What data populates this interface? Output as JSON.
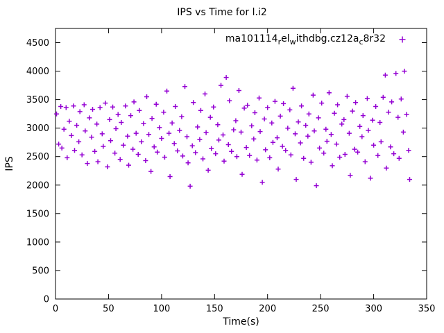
{
  "title": "IPS vs Time for l.i2",
  "xlabel": "Time(s)",
  "ylabel": "IPS",
  "legend": {
    "seg0": "ma101114",
    "seg1": "r",
    "seg2": "el",
    "seg3": "w",
    "seg4": "ithdbg.cz12a",
    "seg5": "c",
    "seg6": "8r32"
  },
  "colors": {
    "series": "#9400D3",
    "axis": "#000000",
    "background": "#ffffff"
  },
  "chart_data": {
    "type": "scatter",
    "title": "IPS vs Time for l.i2",
    "xlabel": "Time(s)",
    "ylabel": "IPS",
    "xlim": [
      0,
      350
    ],
    "ylim": [
      0,
      4750
    ],
    "xticks": [
      0,
      50,
      100,
      150,
      200,
      250,
      300,
      350
    ],
    "yticks": [
      0,
      500,
      1000,
      1500,
      2000,
      2500,
      3000,
      3500,
      4000,
      4500
    ],
    "grid": false,
    "legend_position": "top-right-inside",
    "series": [
      {
        "name": "ma101114_rel_withdbg.cz12a_c8r32",
        "marker": "plus",
        "color": "#9400D3",
        "points": [
          [
            1,
            3250
          ],
          [
            3,
            2720
          ],
          [
            5,
            3380
          ],
          [
            6,
            2650
          ],
          [
            8,
            2980
          ],
          [
            10,
            3360
          ],
          [
            11,
            2480
          ],
          [
            13,
            3120
          ],
          [
            15,
            2870
          ],
          [
            17,
            3390
          ],
          [
            18,
            2610
          ],
          [
            20,
            3050
          ],
          [
            22,
            2760
          ],
          [
            23,
            3290
          ],
          [
            25,
            2530
          ],
          [
            27,
            3410
          ],
          [
            28,
            2950
          ],
          [
            30,
            2380
          ],
          [
            32,
            3180
          ],
          [
            34,
            2840
          ],
          [
            35,
            3330
          ],
          [
            37,
            2590
          ],
          [
            39,
            3070
          ],
          [
            40,
            2410
          ],
          [
            42,
            3360
          ],
          [
            44,
            2900
          ],
          [
            45,
            2680
          ],
          [
            47,
            3440
          ],
          [
            49,
            2320
          ],
          [
            51,
            3150
          ],
          [
            52,
            2780
          ],
          [
            54,
            3370
          ],
          [
            56,
            2560
          ],
          [
            57,
            2990
          ],
          [
            59,
            3240
          ],
          [
            61,
            2450
          ],
          [
            62,
            3100
          ],
          [
            64,
            2700
          ],
          [
            66,
            3390
          ],
          [
            68,
            2860
          ],
          [
            69,
            2350
          ],
          [
            71,
            3220
          ],
          [
            73,
            2630
          ],
          [
            74,
            3460
          ],
          [
            76,
            2910
          ],
          [
            78,
            2540
          ],
          [
            79,
            3310
          ],
          [
            81,
            2760
          ],
          [
            83,
            3080
          ],
          [
            85,
            2430
          ],
          [
            86,
            3550
          ],
          [
            88,
            2890
          ],
          [
            90,
            2240
          ],
          [
            91,
            3170
          ],
          [
            93,
            2670
          ],
          [
            95,
            3420
          ],
          [
            96,
            2580
          ],
          [
            98,
            3010
          ],
          [
            100,
            2820
          ],
          [
            102,
            3280
          ],
          [
            103,
            2490
          ],
          [
            105,
            3650
          ],
          [
            107,
            2910
          ],
          [
            108,
            2150
          ],
          [
            110,
            3090
          ],
          [
            112,
            2730
          ],
          [
            113,
            3380
          ],
          [
            115,
            2600
          ],
          [
            117,
            2960
          ],
          [
            119,
            3200
          ],
          [
            120,
            2510
          ],
          [
            122,
            3730
          ],
          [
            124,
            2850
          ],
          [
            125,
            2390
          ],
          [
            127,
            1980
          ],
          [
            129,
            2690
          ],
          [
            130,
            3450
          ],
          [
            132,
            2570
          ],
          [
            134,
            3020
          ],
          [
            136,
            2800
          ],
          [
            137,
            3310
          ],
          [
            139,
            2460
          ],
          [
            141,
            3600
          ],
          [
            142,
            2920
          ],
          [
            144,
            2260
          ],
          [
            146,
            3190
          ],
          [
            147,
            2640
          ],
          [
            149,
            3370
          ],
          [
            151,
            2550
          ],
          [
            153,
            3060
          ],
          [
            154,
            2790
          ],
          [
            156,
            3750
          ],
          [
            158,
            2880
          ],
          [
            159,
            2420
          ],
          [
            161,
            3890
          ],
          [
            163,
            2710
          ],
          [
            164,
            3480
          ],
          [
            166,
            2590
          ],
          [
            168,
            2970
          ],
          [
            170,
            3130
          ],
          [
            171,
            2500
          ],
          [
            173,
            3660
          ],
          [
            175,
            2930
          ],
          [
            176,
            2190
          ],
          [
            178,
            3350
          ],
          [
            180,
            2660
          ],
          [
            181,
            3400
          ],
          [
            183,
            2520
          ],
          [
            185,
            3040
          ],
          [
            187,
            2810
          ],
          [
            188,
            3270
          ],
          [
            190,
            2440
          ],
          [
            192,
            3530
          ],
          [
            193,
            2940
          ],
          [
            195,
            2050
          ],
          [
            197,
            3160
          ],
          [
            198,
            2620
          ],
          [
            200,
            3360
          ],
          [
            202,
            2480
          ],
          [
            204,
            3090
          ],
          [
            205,
            2750
          ],
          [
            207,
            3470
          ],
          [
            209,
            2830
          ],
          [
            210,
            2280
          ],
          [
            212,
            3210
          ],
          [
            214,
            2680
          ],
          [
            215,
            3430
          ],
          [
            217,
            2610
          ],
          [
            219,
            3000
          ],
          [
            221,
            3320
          ],
          [
            222,
            2530
          ],
          [
            224,
            3700
          ],
          [
            226,
            2900
          ],
          [
            227,
            2100
          ],
          [
            229,
            3110
          ],
          [
            231,
            2740
          ],
          [
            232,
            3390
          ],
          [
            234,
            2470
          ],
          [
            236,
            3050
          ],
          [
            238,
            2860
          ],
          [
            239,
            3250
          ],
          [
            241,
            2400
          ],
          [
            243,
            3580
          ],
          [
            244,
            2950
          ],
          [
            246,
            1990
          ],
          [
            248,
            3180
          ],
          [
            249,
            2650
          ],
          [
            251,
            3440
          ],
          [
            253,
            2560
          ],
          [
            255,
            2980
          ],
          [
            256,
            2770
          ],
          [
            258,
            3620
          ],
          [
            260,
            2890
          ],
          [
            261,
            2340
          ],
          [
            263,
            3260
          ],
          [
            265,
            2720
          ],
          [
            266,
            3410
          ],
          [
            268,
            2490
          ],
          [
            270,
            3070
          ],
          [
            272,
            3150
          ],
          [
            273,
            2540
          ],
          [
            275,
            3560
          ],
          [
            277,
            2910
          ],
          [
            278,
            2170
          ],
          [
            280,
            3300
          ],
          [
            282,
            2630
          ],
          [
            283,
            3450
          ],
          [
            285,
            2580
          ],
          [
            287,
            3030
          ],
          [
            289,
            2850
          ],
          [
            290,
            3220
          ],
          [
            292,
            2410
          ],
          [
            294,
            3520
          ],
          [
            295,
            2960
          ],
          [
            297,
            2120
          ],
          [
            299,
            3140
          ],
          [
            300,
            2700
          ],
          [
            302,
            3380
          ],
          [
            304,
            2520
          ],
          [
            306,
            3100
          ],
          [
            307,
            2760
          ],
          [
            309,
            3540
          ],
          [
            311,
            3930
          ],
          [
            312,
            2300
          ],
          [
            314,
            3280
          ],
          [
            316,
            2670
          ],
          [
            317,
            3460
          ],
          [
            319,
            2550
          ],
          [
            321,
            3960
          ],
          [
            323,
            3190
          ],
          [
            324,
            2470
          ],
          [
            326,
            3510
          ],
          [
            328,
            2930
          ],
          [
            329,
            4000
          ],
          [
            331,
            3240
          ],
          [
            333,
            2610
          ],
          [
            334,
            2100
          ]
        ]
      }
    ]
  }
}
